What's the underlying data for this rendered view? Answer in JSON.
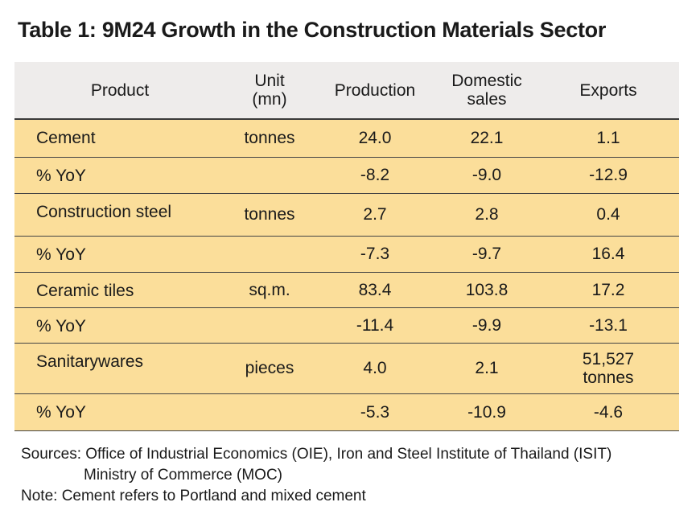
{
  "title": "Table 1: 9M24 Growth in the Construction Materials Sector",
  "headers": {
    "product": "Product",
    "unit_l1": "Unit",
    "unit_l2": "(mn)",
    "production": "Production",
    "domestic_l1": "Domestic",
    "domestic_l2": "sales",
    "exports": "Exports"
  },
  "rows": [
    {
      "product": "Cement",
      "unit": "tonnes",
      "production": "24.0",
      "domestic": "22.1",
      "exports": "1.1",
      "exports_l2": ""
    },
    {
      "product": "% YoY",
      "unit": "",
      "production": "-8.2",
      "domestic": "-9.0",
      "exports": "-12.9",
      "exports_l2": ""
    },
    {
      "product": "Construction steel",
      "unit": "tonnes",
      "production": "2.7",
      "domestic": "2.8",
      "exports": "0.4",
      "exports_l2": ""
    },
    {
      "product": "% YoY",
      "unit": "",
      "production": "-7.3",
      "domestic": "-9.7",
      "exports": "16.4",
      "exports_l2": ""
    },
    {
      "product": "Ceramic tiles",
      "unit": "sq.m.",
      "production": "83.4",
      "domestic": "103.8",
      "exports": "17.2",
      "exports_l2": ""
    },
    {
      "product": "% YoY",
      "unit": "",
      "production": "-11.4",
      "domestic": "-9.9",
      "exports": "-13.1",
      "exports_l2": ""
    },
    {
      "product": "Sanitarywares",
      "unit": "pieces",
      "production": "4.0",
      "domestic": "2.1",
      "exports": "51,527",
      "exports_l2": "tonnes"
    },
    {
      "product": "% YoY",
      "unit": "",
      "production": "-5.3",
      "domestic": "-10.9",
      "exports": "-4.6",
      "exports_l2": ""
    }
  ],
  "footer": {
    "sources_line1": "Sources: Office of Industrial Economics (OIE), Iron and Steel Institute of Thailand (ISIT)",
    "sources_line2": "Ministry of Commerce (MOC)",
    "note": "Note: Cement refers to Portland and mixed cement"
  },
  "colors": {
    "header_bg": "#eeeceb",
    "row_bg": "#fbde9a"
  }
}
